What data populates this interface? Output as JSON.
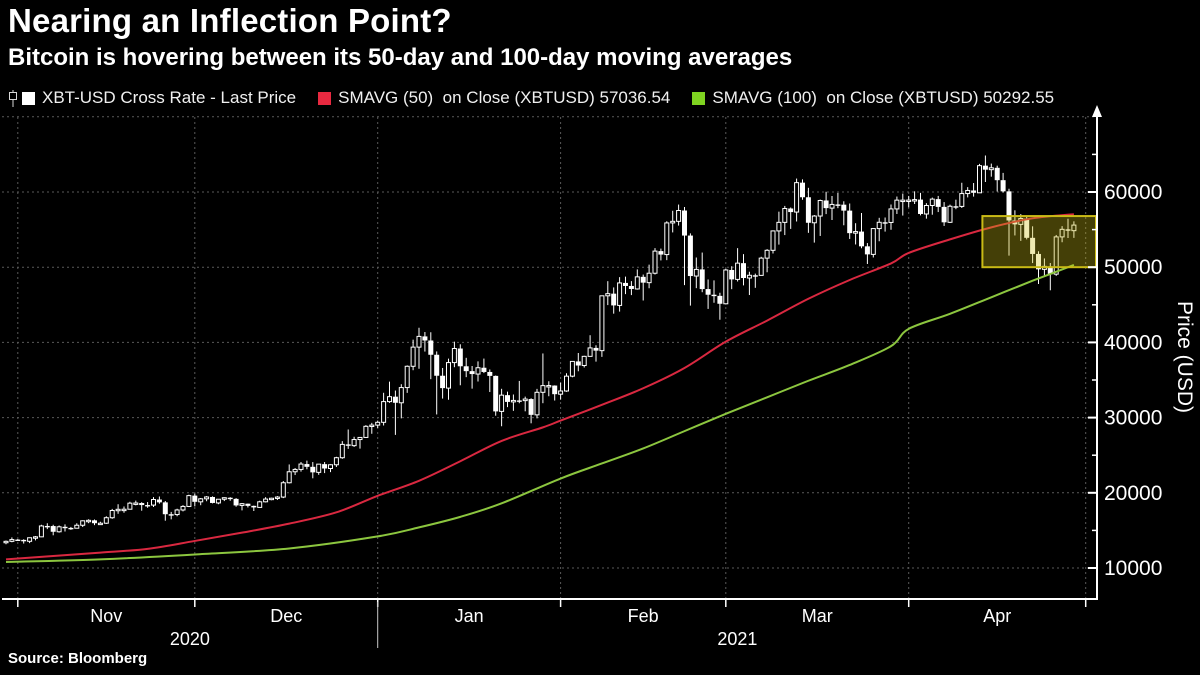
{
  "header": {
    "title": "Nearing an Inflection Point?",
    "subtitle": "Bitcoin is hovering between its 50-day and 100-day moving averages"
  },
  "legend": {
    "items": [
      {
        "label": "XBT-USD Cross Rate - Last Price",
        "swatch_color": "#ffffff",
        "icon": "candlestick-icon"
      },
      {
        "label": "SMAVG (50)  on Close (XBTUSD) 57036.54",
        "swatch_color": "#e82940"
      },
      {
        "label": "SMAVG (100)  on Close (XBTUSD) 50292.55",
        "swatch_color": "#7fd321"
      }
    ]
  },
  "source": "Source: Bloomberg",
  "colors": {
    "background": "#000000",
    "axis": "#ffffff",
    "grid": "#5a5a5a",
    "candle": "#ffffff",
    "sma50": "#d92840",
    "sma100": "#8cc63f",
    "box_stroke": "#c9ba16",
    "box_fill": "rgba(205,190,20,0.33)",
    "year_divider": "#c8c8c8"
  },
  "chart_data": {
    "type": "candlestick",
    "title": "XBT-USD Cross Rate with 50-day and 100-day moving averages",
    "ylabel": "Price (USD)",
    "ylim": [
      5900,
      70000
    ],
    "y_ticks": [
      10000,
      20000,
      30000,
      40000,
      50000,
      60000
    ],
    "y_minor_step": 5000,
    "grid": true,
    "start_date": "2020-10-30",
    "month_tick_days": [
      2,
      32,
      63,
      94,
      122,
      153,
      183
    ],
    "month_labels": [
      "Nov",
      "Dec",
      "Jan",
      "Feb",
      "Mar",
      "Apr"
    ],
    "years": [
      {
        "label": "2020",
        "divider_day": null
      },
      {
        "label": "2021",
        "divider_day": 63
      }
    ],
    "highlight_box": {
      "start_day": 166,
      "price_top": 56800,
      "price_bottom": 50000
    },
    "series": [
      {
        "name": "SMAVG (50) on Close (XBTUSD)",
        "last_value": 57036.54,
        "color": "#d92840",
        "points": [
          [
            0,
            11150
          ],
          [
            8,
            11600
          ],
          [
            16,
            12050
          ],
          [
            24,
            12550
          ],
          [
            32,
            13600
          ],
          [
            40,
            14700
          ],
          [
            48,
            15900
          ],
          [
            56,
            17400
          ],
          [
            63,
            19600
          ],
          [
            70,
            21600
          ],
          [
            77,
            24200
          ],
          [
            84,
            26900
          ],
          [
            91,
            28700
          ],
          [
            94,
            29600
          ],
          [
            101,
            31700
          ],
          [
            108,
            33900
          ],
          [
            115,
            36600
          ],
          [
            122,
            40100
          ],
          [
            129,
            42900
          ],
          [
            136,
            45800
          ],
          [
            143,
            48300
          ],
          [
            150,
            50500
          ],
          [
            153,
            51900
          ],
          [
            160,
            53700
          ],
          [
            167,
            55300
          ],
          [
            174,
            56500
          ],
          [
            181,
            57037
          ]
        ]
      },
      {
        "name": "SMAVG (100) on Close (XBTUSD)",
        "last_value": 50292.55,
        "color": "#8cc63f",
        "points": [
          [
            0,
            10800
          ],
          [
            16,
            11150
          ],
          [
            32,
            11800
          ],
          [
            48,
            12600
          ],
          [
            63,
            14200
          ],
          [
            70,
            15400
          ],
          [
            77,
            16800
          ],
          [
            84,
            18600
          ],
          [
            94,
            21900
          ],
          [
            101,
            23900
          ],
          [
            108,
            25900
          ],
          [
            115,
            28200
          ],
          [
            122,
            30500
          ],
          [
            129,
            32700
          ],
          [
            136,
            34900
          ],
          [
            143,
            37000
          ],
          [
            150,
            39500
          ],
          [
            153,
            41800
          ],
          [
            160,
            43800
          ],
          [
            167,
            46000
          ],
          [
            174,
            48200
          ],
          [
            181,
            50293
          ]
        ]
      }
    ],
    "candles_ohlc": [
      [
        13437,
        13650,
        13150,
        13546
      ],
      [
        13546,
        14070,
        13420,
        13780
      ],
      [
        13780,
        13850,
        13590,
        13737
      ],
      [
        13737,
        13820,
        13250,
        13550
      ],
      [
        13550,
        14060,
        13310,
        14023
      ],
      [
        14023,
        14260,
        13680,
        14144
      ],
      [
        14144,
        15750,
        14110,
        15590
      ],
      [
        15590,
        15950,
        15170,
        15579
      ],
      [
        15579,
        15750,
        14350,
        14818
      ],
      [
        14818,
        15650,
        14700,
        15479
      ],
      [
        15479,
        15800,
        14850,
        15332
      ],
      [
        15332,
        15460,
        15070,
        15290
      ],
      [
        15290,
        15950,
        15270,
        15684
      ],
      [
        15684,
        16340,
        15450,
        16276
      ],
      [
        16276,
        16480,
        15960,
        16339
      ],
      [
        16339,
        16450,
        15700,
        15955
      ],
      [
        15955,
        16150,
        15780,
        15955
      ],
      [
        15955,
        16880,
        15860,
        16685
      ],
      [
        16685,
        17860,
        16540,
        17645
      ],
      [
        17645,
        18480,
        17210,
        17804
      ],
      [
        17804,
        18180,
        17350,
        17817
      ],
      [
        17817,
        18810,
        17770,
        18621
      ],
      [
        18621,
        18960,
        18330,
        18642
      ],
      [
        18642,
        18750,
        17620,
        18370
      ],
      [
        18370,
        18770,
        18010,
        18365
      ],
      [
        18365,
        19420,
        18110,
        19107
      ],
      [
        19107,
        19510,
        18550,
        18729
      ],
      [
        18729,
        18910,
        16290,
        17151
      ],
      [
        17151,
        17460,
        16470,
        17108
      ],
      [
        17108,
        17880,
        16880,
        17717
      ],
      [
        17717,
        18360,
        17530,
        18185
      ],
      [
        18185,
        19750,
        18100,
        19625
      ],
      [
        19625,
        19890,
        18200,
        18801
      ],
      [
        18801,
        19310,
        18350,
        19201
      ],
      [
        19201,
        19570,
        18880,
        19445
      ],
      [
        19445,
        19520,
        18590,
        18650
      ],
      [
        18650,
        19170,
        18480,
        19144
      ],
      [
        19144,
        19400,
        18900,
        19345
      ],
      [
        19345,
        19420,
        18940,
        19191
      ],
      [
        19191,
        19290,
        18150,
        18321
      ],
      [
        18321,
        18640,
        17660,
        18553
      ],
      [
        18553,
        18560,
        18050,
        18264
      ],
      [
        18264,
        18300,
        17580,
        18058
      ],
      [
        18058,
        18950,
        18040,
        18803
      ],
      [
        18803,
        19420,
        18720,
        19167
      ],
      [
        19167,
        19350,
        19010,
        19277
      ],
      [
        19277,
        19570,
        19050,
        19433
      ],
      [
        19433,
        21570,
        19290,
        21335
      ],
      [
        21335,
        23770,
        21240,
        22797
      ],
      [
        22797,
        23290,
        22360,
        23107
      ],
      [
        23107,
        24100,
        22810,
        23821
      ],
      [
        23821,
        24280,
        23130,
        23455
      ],
      [
        23455,
        24090,
        21930,
        22719
      ],
      [
        22719,
        23830,
        22390,
        23810
      ],
      [
        23810,
        24090,
        22620,
        23232
      ],
      [
        23232,
        23790,
        22750,
        23729
      ],
      [
        23729,
        24790,
        23430,
        24665
      ],
      [
        24665,
        26870,
        24520,
        26437
      ],
      [
        26437,
        28420,
        25840,
        26272
      ],
      [
        26272,
        27450,
        26100,
        27084
      ],
      [
        27084,
        27410,
        25880,
        27362
      ],
      [
        27362,
        29000,
        27320,
        28840
      ],
      [
        28840,
        29300,
        27850,
        29001
      ],
      [
        29001,
        29600,
        28620,
        29374
      ],
      [
        29374,
        33300,
        28950,
        32127
      ],
      [
        32127,
        34780,
        31960,
        32782
      ],
      [
        32782,
        33600,
        27700,
        31971
      ],
      [
        31971,
        34440,
        29900,
        33992
      ],
      [
        33992,
        36940,
        33290,
        36824
      ],
      [
        36824,
        40365,
        36300,
        39371
      ],
      [
        39371,
        41950,
        36500,
        40797
      ],
      [
        40797,
        41380,
        38780,
        40254
      ],
      [
        40254,
        41350,
        35111,
        38356
      ],
      [
        38356,
        38800,
        30420,
        35566
      ],
      [
        35566,
        36600,
        32531,
        33922
      ],
      [
        33922,
        37850,
        32380,
        37316
      ],
      [
        37316,
        40100,
        36701,
        39187
      ],
      [
        39187,
        39750,
        34300,
        36825
      ],
      [
        36825,
        37950,
        35380,
        36178
      ],
      [
        36178,
        36860,
        33850,
        35791
      ],
      [
        35791,
        37470,
        34800,
        36630
      ],
      [
        36630,
        37850,
        35920,
        36069
      ],
      [
        36069,
        36400,
        33400,
        35547
      ],
      [
        35547,
        35600,
        30250,
        30825
      ],
      [
        30825,
        33830,
        28850,
        32985
      ],
      [
        32985,
        33460,
        31390,
        32087
      ],
      [
        32087,
        33071,
        30900,
        32283
      ],
      [
        32283,
        34875,
        31910,
        32259
      ],
      [
        32259,
        32790,
        30837,
        32467
      ],
      [
        32467,
        32570,
        29241,
        30366
      ],
      [
        30366,
        33825,
        29890,
        33364
      ],
      [
        33364,
        38531,
        31915,
        34252
      ],
      [
        34252,
        34834,
        32840,
        34262
      ],
      [
        34262,
        34288,
        32270,
        33114
      ],
      [
        33114,
        34638,
        32384,
        33537
      ],
      [
        33537,
        35896,
        33418,
        35510
      ],
      [
        35510,
        37480,
        35362,
        37472
      ],
      [
        37472,
        38592,
        36161,
        36926
      ],
      [
        36926,
        38225,
        36658,
        38144
      ],
      [
        38144,
        40955,
        38138,
        39266
      ],
      [
        39266,
        39621,
        37446,
        38903
      ],
      [
        38903,
        46203,
        38076,
        46196
      ],
      [
        46196,
        48142,
        44961,
        46481
      ],
      [
        46481,
        47310,
        43821,
        44918
      ],
      [
        44918,
        48678,
        44096,
        47909
      ],
      [
        47909,
        48745,
        46424,
        47504
      ],
      [
        47504,
        48150,
        46290,
        47105
      ],
      [
        47105,
        49707,
        47014,
        48717
      ],
      [
        48717,
        49022,
        45570,
        47945
      ],
      [
        47945,
        50341,
        47201,
        49199
      ],
      [
        49199,
        52533,
        49029,
        52140
      ],
      [
        52140,
        52474,
        50900,
        51679
      ],
      [
        51679,
        56113,
        50937,
        55888
      ],
      [
        55888,
        57505,
        54626,
        56099
      ],
      [
        56099,
        58330,
        55535,
        57539
      ],
      [
        57539,
        58000,
        47622,
        54207
      ],
      [
        54207,
        54500,
        44892,
        48824
      ],
      [
        48824,
        51290,
        47213,
        49705
      ],
      [
        49705,
        51948,
        46674,
        47093
      ],
      [
        47093,
        48370,
        44454,
        46339
      ],
      [
        46339,
        48253,
        45269,
        46188
      ],
      [
        46188,
        46603,
        43016,
        45137
      ],
      [
        45137,
        49784,
        45045,
        49631
      ],
      [
        49631,
        50127,
        47080,
        48378
      ],
      [
        48378,
        52535,
        48100,
        50538
      ],
      [
        50538,
        51735,
        47580,
        48561
      ],
      [
        48561,
        49396,
        46300,
        48927
      ],
      [
        48927,
        49147,
        47257,
        48912
      ],
      [
        48912,
        51384,
        48900,
        51206
      ],
      [
        51206,
        52402,
        49328,
        52246
      ],
      [
        52246,
        54895,
        51821,
        54824
      ],
      [
        54824,
        57387,
        53005,
        55963
      ],
      [
        55963,
        58150,
        54272,
        57805
      ],
      [
        57805,
        57937,
        55093,
        57332
      ],
      [
        57332,
        61788,
        56078,
        61243
      ],
      [
        61243,
        61680,
        58972,
        59302
      ],
      [
        59302,
        60559,
        54568,
        55907
      ],
      [
        55907,
        56938,
        53271,
        56804
      ],
      [
        56804,
        58995,
        54155,
        58870
      ],
      [
        58870,
        60030,
        57063,
        57858
      ],
      [
        57858,
        59468,
        56274,
        58346
      ],
      [
        58346,
        59880,
        57850,
        58313
      ],
      [
        58313,
        58767,
        55576,
        57523
      ],
      [
        57523,
        58471,
        53756,
        54529
      ],
      [
        54529,
        55850,
        53022,
        54738
      ],
      [
        54738,
        57200,
        52514,
        52774
      ],
      [
        52774,
        53210,
        50427,
        51704
      ],
      [
        51704,
        55137,
        51293,
        55137
      ],
      [
        55137,
        56568,
        53451,
        55973
      ],
      [
        55973,
        56610,
        54735,
        55950
      ],
      [
        55950,
        58342,
        54972,
        57750
      ],
      [
        57750,
        59397,
        57078,
        58917
      ],
      [
        58917,
        59787,
        56867,
        58918
      ],
      [
        58918,
        59474,
        57963,
        58926
      ],
      [
        58926,
        60090,
        58405,
        58990
      ],
      [
        58990,
        59880,
        56890,
        57077
      ],
      [
        57077,
        58516,
        56456,
        58206
      ],
      [
        58206,
        59259,
        56978,
        59054
      ],
      [
        59054,
        59478,
        57332,
        58020
      ],
      [
        58020,
        58658,
        55489,
        55970
      ],
      [
        55970,
        58318,
        55880,
        58103
      ],
      [
        58103,
        58981,
        57713,
        58083
      ],
      [
        58083,
        61229,
        57875,
        59793
      ],
      [
        59793,
        60647,
        59282,
        60204
      ],
      [
        60204,
        61193,
        59385,
        59893
      ],
      [
        59893,
        63742,
        59874,
        63503
      ],
      [
        63503,
        64854,
        61328,
        62970
      ],
      [
        62970,
        63778,
        62036,
        63216
      ],
      [
        63216,
        63500,
        60065,
        61572
      ],
      [
        61572,
        62541,
        59929,
        60087
      ],
      [
        60087,
        60435,
        51541,
        56216
      ],
      [
        56216,
        57566,
        54222,
        55696
      ],
      [
        55696,
        57062,
        53499,
        56473
      ],
      [
        56473,
        56757,
        53695,
        53906
      ],
      [
        53906,
        55437,
        50551,
        51762
      ],
      [
        51762,
        52115,
        47770,
        49716
      ],
      [
        49716,
        51167,
        48805,
        50110
      ],
      [
        50110,
        50558,
        46930,
        49075
      ],
      [
        49075,
        54288,
        48852,
        54030
      ],
      [
        54030,
        55460,
        53319,
        55036
      ],
      [
        55036,
        56445,
        53887,
        54858
      ],
      [
        54858,
        56100,
        53900,
        55600
      ]
    ]
  }
}
